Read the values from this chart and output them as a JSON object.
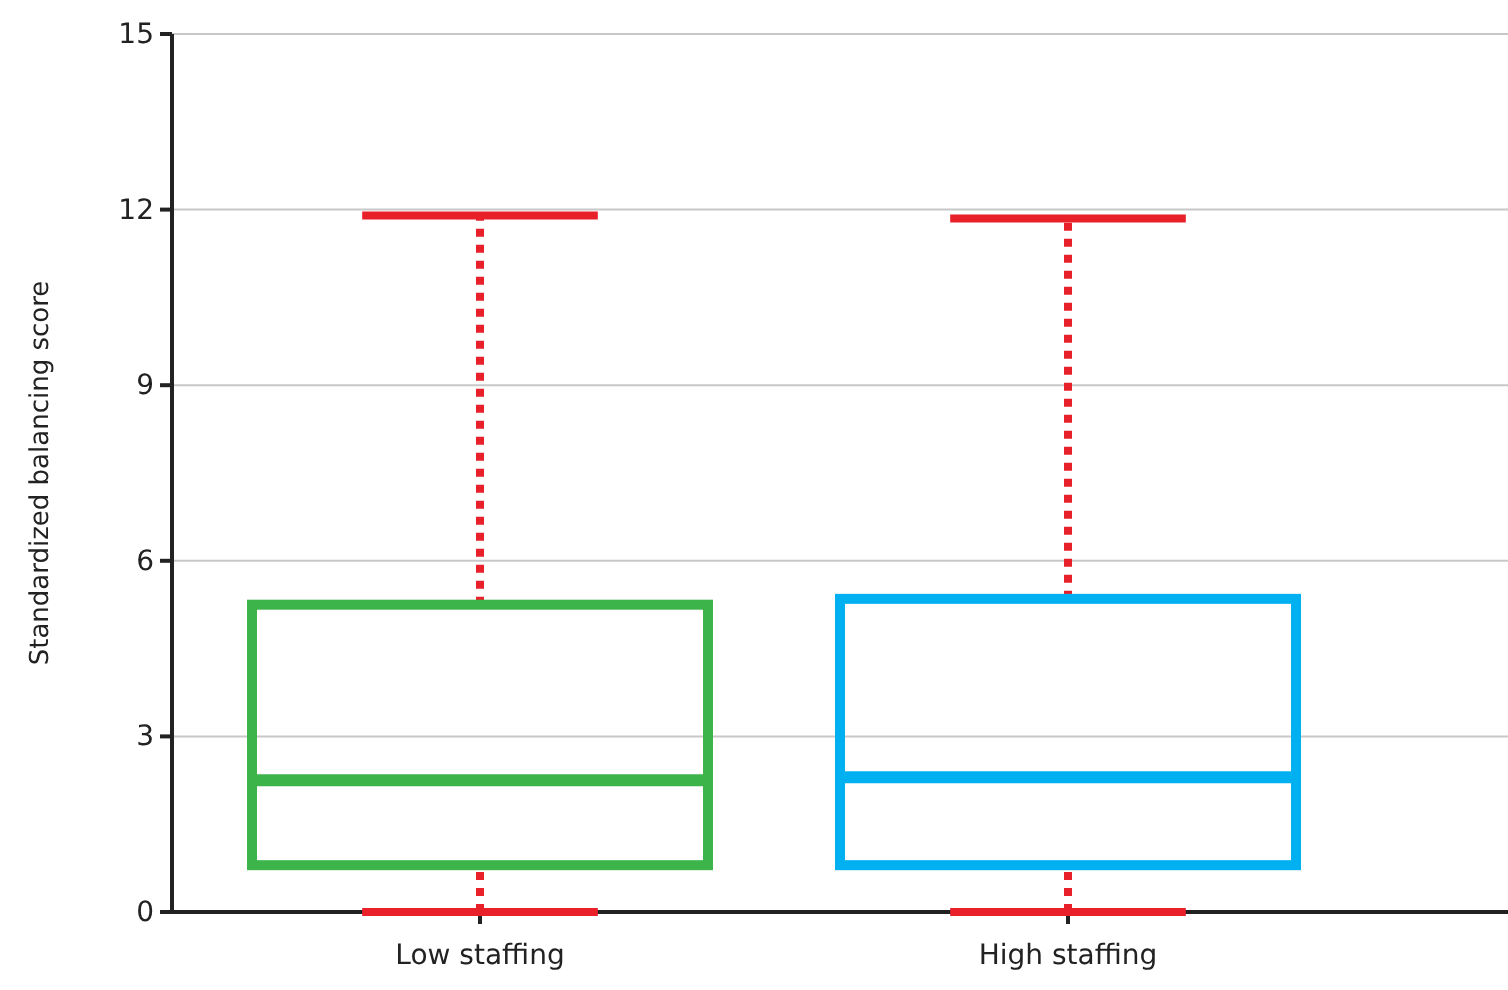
{
  "chart_data": {
    "type": "box",
    "ylabel": "Standardized balancing score",
    "categories": [
      "Low staffing",
      "High staffing"
    ],
    "boxes": [
      {
        "low": 0,
        "q1": 0.8,
        "median": 2.25,
        "q3": 5.25,
        "high": 11.9
      },
      {
        "low": 0,
        "q1": 0.8,
        "median": 2.3,
        "q3": 5.35,
        "high": 11.85
      }
    ],
    "colors": [
      "#3cb44a",
      "#00b0f0"
    ],
    "ylim": [
      0,
      15
    ],
    "yticks": [
      0,
      3,
      6,
      9,
      12,
      15
    ],
    "grid": "y"
  }
}
